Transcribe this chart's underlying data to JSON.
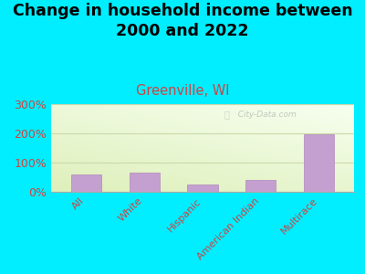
{
  "title": "Change in household income between\n2000 and 2022",
  "subtitle": "Greenville, WI",
  "categories": [
    "All",
    "White",
    "Hispanic",
    "American Indian",
    "Multirace"
  ],
  "values": [
    60,
    65,
    25,
    42,
    197
  ],
  "bar_color": "#c4a0d0",
  "bar_edge_color": "#b088bb",
  "title_fontsize": 12.5,
  "subtitle_fontsize": 10.5,
  "subtitle_color": "#cc4444",
  "tick_label_color": "#cc4444",
  "background_color": "#00eeff",
  "plot_bg_color1": "#f8fdf0",
  "plot_bg_color2": "#ddeebb",
  "ylim": [
    0,
    300
  ],
  "yticks": [
    0,
    100,
    200,
    300
  ],
  "ytick_labels": [
    "0%",
    "100%",
    "200%",
    "300%"
  ],
  "watermark": "  City-Data.com",
  "grid_color": "#ccd8aa",
  "grid_linewidth": 0.8
}
